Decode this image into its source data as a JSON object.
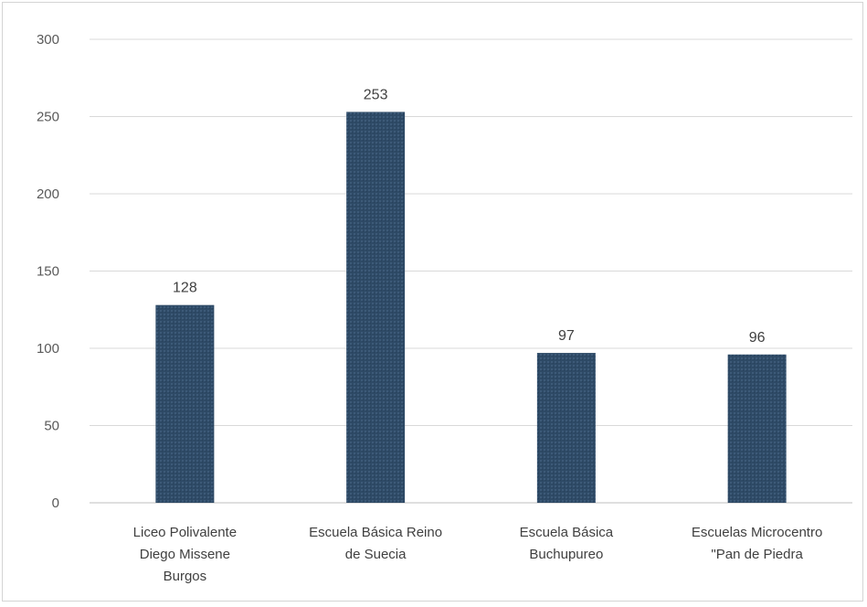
{
  "chart_data": {
    "type": "bar",
    "title": "",
    "xlabel": "",
    "ylabel": "",
    "categories": [
      [
        "Liceo Polivalente",
        "Diego Missene",
        "Burgos"
      ],
      [
        "Escuela Básica Reino",
        "de Suecia"
      ],
      [
        "Escuela Básica",
        "Buchupureo"
      ],
      [
        "Escuelas Microcentro",
        "\"Pan de Piedra"
      ]
    ],
    "values": [
      128,
      253,
      97,
      96
    ],
    "data_labels": [
      "128",
      "253",
      "97",
      "96"
    ],
    "ylim": [
      0,
      300
    ],
    "yticks": [
      0,
      50,
      100,
      150,
      200,
      250,
      300
    ],
    "grid": true,
    "legend": "none",
    "colors": {
      "bar": "#2e4a66",
      "bar_texture": "#3d5a78",
      "gridline": "#d9d9d9",
      "text": "#404040"
    }
  }
}
